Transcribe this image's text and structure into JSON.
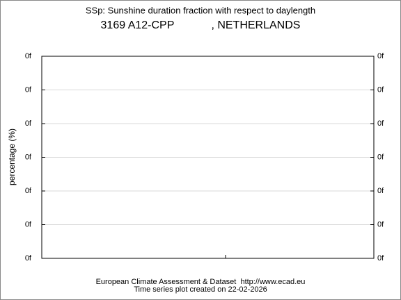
{
  "chart_data": {
    "type": "line",
    "title": "SSp: Sunshine duration fraction with respect to daylength",
    "subtitle": "3169 A12-CPP            , NETHERLANDS",
    "ylabel": "percentage (%)",
    "yticks": [
      "0f",
      "0f",
      "0f",
      "0f",
      "0f",
      "0f",
      "0f"
    ],
    "grid": true,
    "footer": [
      "European Climate Assessment & Dataset  http://www.ecad.eu",
      "Time series plot created on 22-02-2026"
    ],
    "series": []
  }
}
